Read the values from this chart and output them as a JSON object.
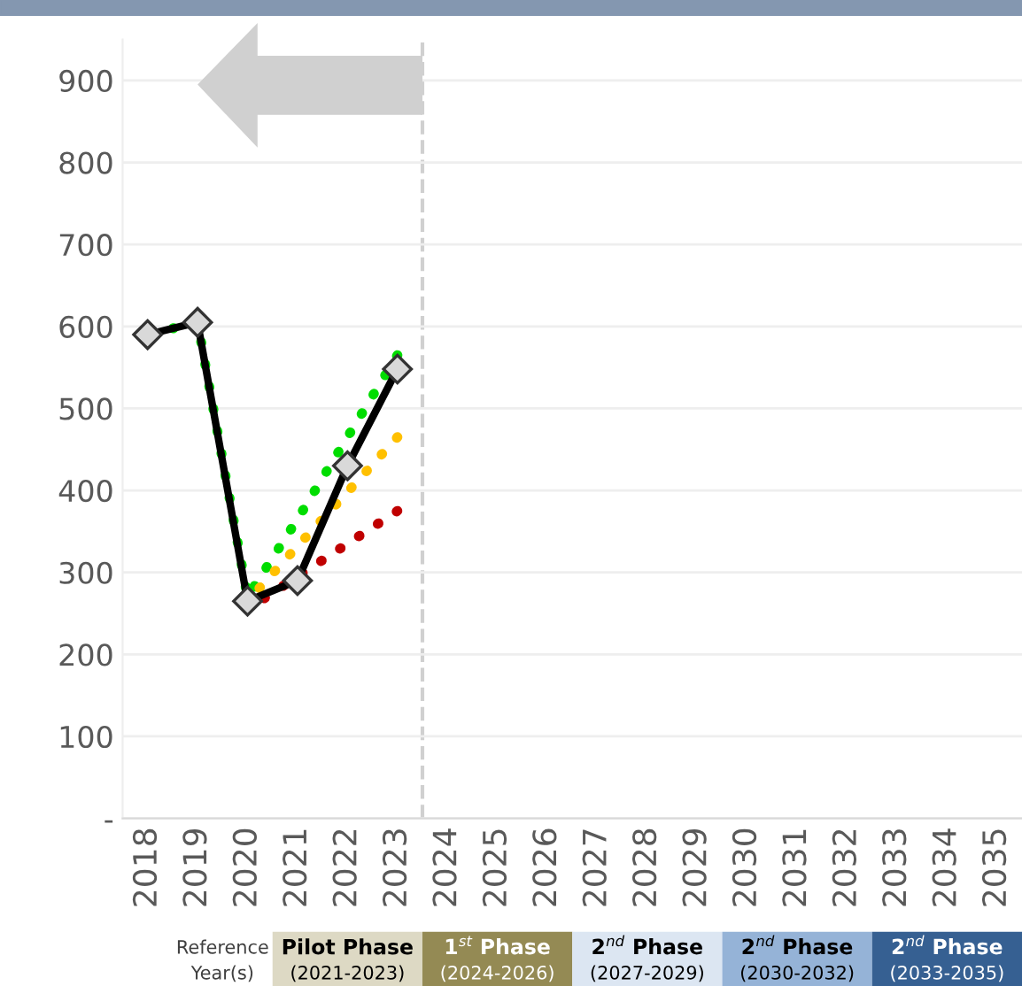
{
  "chart_data": {
    "type": "line",
    "x": [
      2018,
      2019,
      2020,
      2021,
      2022,
      2023
    ],
    "series": [
      {
        "color": "#00dd00",
        "values": [
          590,
          605,
          270,
          365,
          465,
          565
        ],
        "line_style": "dotted"
      },
      {
        "color": "#ffc000",
        "values": [
          null,
          null,
          265,
          332,
          398,
          465
        ],
        "line_style": "dotted"
      },
      {
        "color": "#c00000",
        "values": [
          null,
          null,
          255,
          295,
          335,
          375
        ],
        "line_style": "dotted"
      },
      {
        "color": "#000000",
        "values": [
          590,
          605,
          265,
          290,
          430,
          548
        ],
        "line_style": "solid",
        "marker": "diamond"
      }
    ],
    "xlim": [
      2017.5,
      2035.5
    ],
    "xticks": [
      2018,
      2019,
      2020,
      2021,
      2022,
      2023,
      2024,
      2025,
      2026,
      2027,
      2028,
      2029,
      2030,
      2031,
      2032,
      2033,
      2034,
      2035
    ],
    "ylim": [
      0,
      950
    ],
    "yticks": [
      {
        "value": 0,
        "label": "-"
      },
      100,
      200,
      300,
      400,
      500,
      600,
      700,
      800,
      900
    ],
    "grid": "y",
    "legend": false,
    "ref_lines": [
      {
        "axis": "x",
        "value": 2023.5,
        "color": "#d0d0d0",
        "line_style": "dashed"
      }
    ],
    "annotations": [
      "Reference\nYear(s)",
      "Pilot Phase\n(2021-2023)",
      "1$^{st}$ Phase\n(2024-2026)",
      "2$^{nd}$ Phase\n(2027-2029)",
      "2$^{nd}$ Phase\n(2030-2032)",
      "2$^{nd}$ Phase\n(2033-2035)"
    ]
  }
}
